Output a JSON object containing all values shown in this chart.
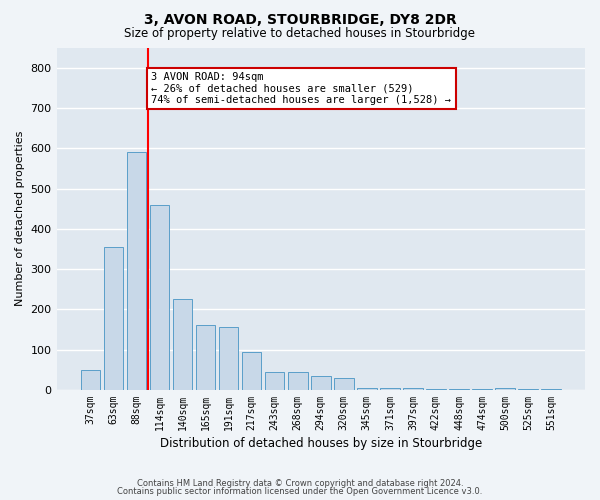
{
  "title1": "3, AVON ROAD, STOURBRIDGE, DY8 2DR",
  "title2": "Size of property relative to detached houses in Stourbridge",
  "xlabel": "Distribution of detached houses by size in Stourbridge",
  "ylabel": "Number of detached properties",
  "categories": [
    "37sqm",
    "63sqm",
    "88sqm",
    "114sqm",
    "140sqm",
    "165sqm",
    "191sqm",
    "217sqm",
    "243sqm",
    "268sqm",
    "294sqm",
    "320sqm",
    "345sqm",
    "371sqm",
    "397sqm",
    "422sqm",
    "448sqm",
    "474sqm",
    "500sqm",
    "525sqm",
    "551sqm"
  ],
  "values": [
    50,
    355,
    590,
    460,
    225,
    160,
    155,
    95,
    45,
    45,
    35,
    30,
    5,
    5,
    5,
    3,
    3,
    2,
    5,
    2,
    2
  ],
  "bar_color": "#c8d8e8",
  "bar_edge_color": "#5a9ec9",
  "background_color": "#e0e8f0",
  "grid_color": "#ffffff",
  "annotation_text": "3 AVON ROAD: 94sqm\n← 26% of detached houses are smaller (529)\n74% of semi-detached houses are larger (1,528) →",
  "annotation_box_color": "#ffffff",
  "annotation_box_edge_color": "#cc0000",
  "ylim": [
    0,
    850
  ],
  "yticks": [
    0,
    100,
    200,
    300,
    400,
    500,
    600,
    700,
    800
  ],
  "footer1": "Contains HM Land Registry data © Crown copyright and database right 2024.",
  "footer2": "Contains public sector information licensed under the Open Government Licence v3.0."
}
